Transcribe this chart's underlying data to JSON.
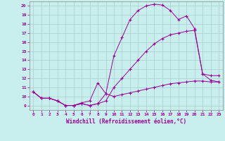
{
  "title": "",
  "xlabel": "Windchill (Refroidissement éolien,°C)",
  "ylabel": "",
  "xlim": [
    -0.5,
    23.5
  ],
  "ylim": [
    8.5,
    20.5
  ],
  "yticks": [
    9,
    10,
    11,
    12,
    13,
    14,
    15,
    16,
    17,
    18,
    19,
    20
  ],
  "xticks": [
    0,
    1,
    2,
    3,
    4,
    5,
    6,
    7,
    8,
    9,
    10,
    11,
    12,
    13,
    14,
    15,
    16,
    17,
    18,
    19,
    20,
    21,
    22,
    23
  ],
  "line_color": "#9b009b",
  "bg_color": "#c8eeee",
  "grid_color": "#aacccc",
  "line1_x": [
    0,
    1,
    2,
    3,
    4,
    5,
    6,
    7,
    8,
    9,
    10,
    11,
    12,
    13,
    14,
    15,
    16,
    17,
    18,
    19,
    20,
    21,
    22,
    23
  ],
  "line1_y": [
    10.5,
    9.8,
    9.8,
    9.5,
    9.0,
    9.0,
    9.3,
    9.5,
    11.5,
    10.3,
    10.0,
    10.2,
    10.4,
    10.6,
    10.8,
    11.0,
    11.2,
    11.4,
    11.5,
    11.6,
    11.7,
    11.7,
    11.6,
    11.6
  ],
  "line2_x": [
    0,
    1,
    2,
    3,
    4,
    5,
    6,
    7,
    8,
    9,
    10,
    11,
    12,
    13,
    14,
    15,
    16,
    17,
    18,
    19,
    20,
    21,
    22,
    23
  ],
  "line2_y": [
    10.5,
    9.8,
    9.8,
    9.5,
    9.0,
    9.0,
    9.2,
    9.0,
    9.2,
    10.3,
    14.5,
    16.5,
    18.5,
    19.5,
    20.0,
    20.2,
    20.1,
    19.5,
    18.5,
    18.9,
    17.5,
    12.5,
    12.3,
    12.3
  ],
  "line3_x": [
    0,
    1,
    2,
    3,
    4,
    5,
    6,
    7,
    8,
    9,
    10,
    11,
    12,
    13,
    14,
    15,
    16,
    17,
    18,
    19,
    20,
    21,
    22,
    23
  ],
  "line3_y": [
    10.5,
    9.8,
    9.8,
    9.5,
    9.0,
    9.0,
    9.2,
    9.0,
    9.2,
    9.5,
    11.0,
    12.0,
    13.0,
    14.0,
    15.0,
    15.8,
    16.4,
    16.8,
    17.0,
    17.2,
    17.3,
    12.5,
    11.8,
    11.6
  ]
}
